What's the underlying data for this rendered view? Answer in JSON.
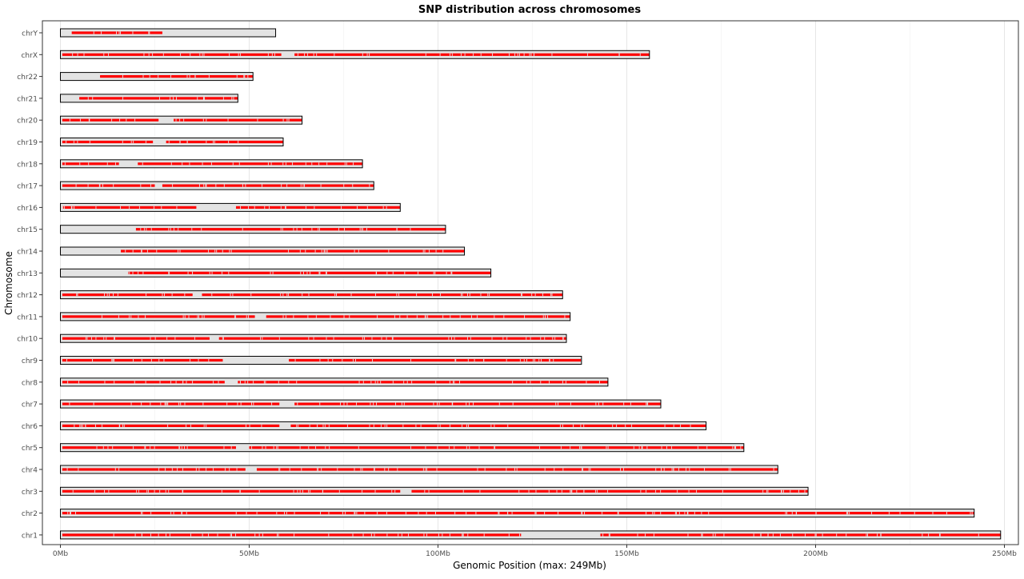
{
  "chart_data": {
    "type": "ideogram",
    "title": "SNP distribution across chromosomes",
    "xlabel": "Genomic Position (max: 249Mb)",
    "ylabel": "Chromosome",
    "xlim": [
      0,
      250
    ],
    "x_unit": "Mb",
    "x_ticks": [
      0,
      50,
      100,
      150,
      200,
      250
    ],
    "x_tick_labels": [
      "0Mb",
      "50Mb",
      "100Mb",
      "150Mb",
      "200Mb",
      "250Mb"
    ],
    "grid": true,
    "colors": {
      "snp": "#ff0000",
      "chromosome_fill": "#e3e3e3",
      "chromosome_border": "#000000",
      "grid": "#ebebeb",
      "panel_border": "#333333"
    },
    "chromosomes": [
      {
        "name": "chr1",
        "length_mb": 249,
        "snp_regions": [
          [
            0.5,
            122
          ],
          [
            143,
            249
          ]
        ]
      },
      {
        "name": "chr2",
        "length_mb": 242,
        "snp_regions": [
          [
            0.5,
            242
          ]
        ]
      },
      {
        "name": "chr3",
        "length_mb": 198,
        "snp_regions": [
          [
            0.5,
            90
          ],
          [
            93,
            198
          ]
        ]
      },
      {
        "name": "chr4",
        "length_mb": 190,
        "snp_regions": [
          [
            0.5,
            49
          ],
          [
            52,
            190
          ]
        ]
      },
      {
        "name": "chr5",
        "length_mb": 181,
        "snp_regions": [
          [
            0.5,
            46.5
          ],
          [
            50,
            181
          ]
        ]
      },
      {
        "name": "chr6",
        "length_mb": 171,
        "snp_regions": [
          [
            0.5,
            58
          ],
          [
            61,
            171
          ]
        ]
      },
      {
        "name": "chr7",
        "length_mb": 159,
        "snp_regions": [
          [
            0.5,
            58
          ],
          [
            62,
            159
          ]
        ]
      },
      {
        "name": "chr8",
        "length_mb": 145,
        "snp_regions": [
          [
            0.5,
            43.5
          ],
          [
            47,
            145
          ]
        ]
      },
      {
        "name": "chr9",
        "length_mb": 138,
        "snp_regions": [
          [
            0.5,
            43
          ],
          [
            60.5,
            138
          ]
        ]
      },
      {
        "name": "chr10",
        "length_mb": 134,
        "snp_regions": [
          [
            0.5,
            39.5
          ],
          [
            42,
            134
          ]
        ]
      },
      {
        "name": "chr11",
        "length_mb": 135,
        "snp_regions": [
          [
            0.5,
            51.5
          ],
          [
            54.5,
            135
          ]
        ]
      },
      {
        "name": "chr12",
        "length_mb": 133,
        "snp_regions": [
          [
            0.5,
            35
          ],
          [
            37.5,
            133
          ]
        ]
      },
      {
        "name": "chr13",
        "length_mb": 114,
        "snp_regions": [
          [
            18,
            114
          ]
        ]
      },
      {
        "name": "chr14",
        "length_mb": 107,
        "snp_regions": [
          [
            16,
            107
          ]
        ]
      },
      {
        "name": "chr15",
        "length_mb": 102,
        "snp_regions": [
          [
            20,
            102
          ]
        ]
      },
      {
        "name": "chr16",
        "length_mb": 90,
        "snp_regions": [
          [
            0.5,
            36
          ],
          [
            46.5,
            90
          ]
        ]
      },
      {
        "name": "chr17",
        "length_mb": 83,
        "snp_regions": [
          [
            0.5,
            25
          ],
          [
            27,
            83
          ]
        ]
      },
      {
        "name": "chr18",
        "length_mb": 80,
        "snp_regions": [
          [
            0.5,
            15.5
          ],
          [
            20.5,
            80
          ]
        ]
      },
      {
        "name": "chr19",
        "length_mb": 59,
        "snp_regions": [
          [
            0.5,
            24.5
          ],
          [
            28,
            59
          ]
        ]
      },
      {
        "name": "chr20",
        "length_mb": 64,
        "snp_regions": [
          [
            0.5,
            26
          ],
          [
            30,
            64
          ]
        ]
      },
      {
        "name": "chr21",
        "length_mb": 47,
        "snp_regions": [
          [
            5,
            47
          ]
        ]
      },
      {
        "name": "chr22",
        "length_mb": 51,
        "snp_regions": [
          [
            10.5,
            51
          ]
        ]
      },
      {
        "name": "chrX",
        "length_mb": 156,
        "snp_regions": [
          [
            0.5,
            58.5
          ],
          [
            62,
            156
          ]
        ]
      },
      {
        "name": "chrY",
        "length_mb": 57,
        "snp_regions": [
          [
            3,
            27
          ]
        ]
      }
    ]
  }
}
